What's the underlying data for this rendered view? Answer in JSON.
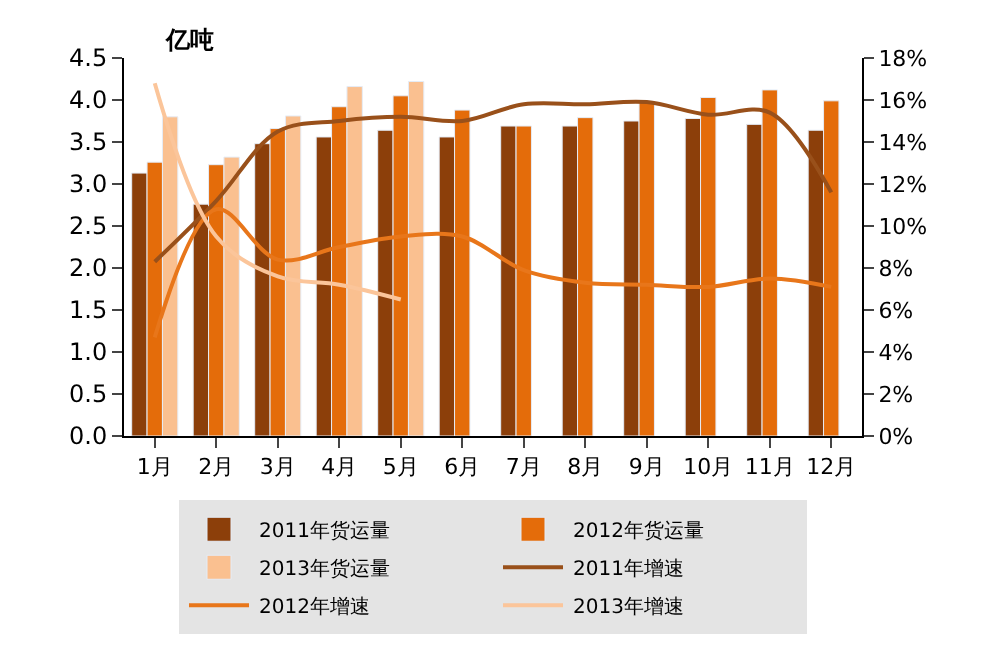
{
  "chart_data": {
    "type": "bar",
    "ylabel": "亿吨",
    "categories": [
      "1月",
      "2月",
      "3月",
      "4月",
      "5月",
      "6月",
      "7月",
      "8月",
      "9月",
      "10月",
      "11月",
      "12月"
    ],
    "series": [
      {
        "name": "2011年货运量",
        "color": "#8c3f0a",
        "values": [
          3.13,
          2.76,
          3.48,
          3.56,
          3.64,
          3.56,
          3.69,
          3.69,
          3.75,
          3.78,
          3.71,
          3.64
        ]
      },
      {
        "name": "2012年货运量",
        "color": "#e46c0a",
        "values": [
          3.26,
          3.23,
          3.66,
          3.92,
          4.05,
          3.88,
          3.69,
          3.79,
          3.98,
          4.03,
          4.12,
          3.99
        ]
      },
      {
        "name": "2013年货运量",
        "color": "#fac090",
        "values": [
          3.8,
          3.32,
          3.81,
          4.16,
          4.22,
          null,
          null,
          null,
          null,
          null,
          null,
          null
        ]
      },
      {
        "name": "2011年增速",
        "type": "line",
        "axis": "y2",
        "color": "#99501a",
        "values": [
          8.3,
          11.2,
          14.5,
          15.0,
          15.2,
          15.0,
          15.8,
          15.8,
          15.9,
          15.3,
          15.4,
          11.6
        ]
      },
      {
        "name": "2012年增速",
        "type": "line",
        "axis": "y2",
        "color": "#e8761a",
        "values": [
          4.7,
          10.8,
          8.4,
          9.0,
          9.5,
          9.5,
          7.9,
          7.3,
          7.2,
          7.1,
          7.5,
          7.1
        ]
      },
      {
        "name": "2013年增速",
        "type": "line",
        "axis": "y2",
        "color": "#fbc59a",
        "values": [
          16.8,
          9.5,
          7.6,
          7.2,
          6.5,
          null,
          null,
          null,
          null,
          null,
          null,
          null
        ]
      }
    ],
    "ylim": [
      0,
      4.5
    ],
    "yticks": [
      {
        "value": 0,
        "label": "0.0"
      },
      0.5,
      {
        "value": 1,
        "label": "1.0"
      },
      1.5,
      {
        "value": 2,
        "label": "2.0"
      },
      2.5,
      {
        "value": 3,
        "label": "3.0"
      },
      3.5,
      {
        "value": 4,
        "label": "4.0"
      },
      4.5
    ],
    "y2lim": [
      0,
      18
    ],
    "y2ticks": [
      {
        "value": 0,
        "label": "0%"
      },
      {
        "value": 2,
        "label": "2%"
      },
      {
        "value": 4,
        "label": "4%"
      },
      {
        "value": 6,
        "label": "6%"
      },
      {
        "value": 8,
        "label": "8%"
      },
      {
        "value": 10,
        "label": "10%"
      },
      {
        "value": 12,
        "label": "12%"
      },
      {
        "value": 14,
        "label": "14%"
      },
      {
        "value": 16,
        "label": "16%"
      },
      {
        "value": 18,
        "label": "18%"
      }
    ],
    "legend": "bottom",
    "marker": "none"
  }
}
